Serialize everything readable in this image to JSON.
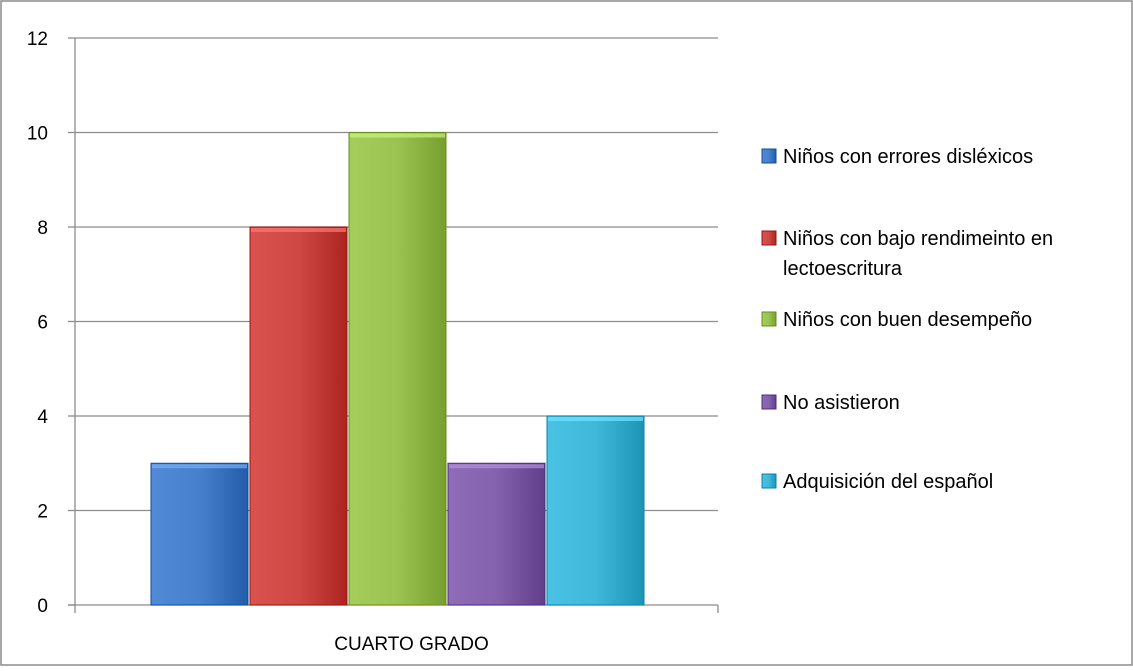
{
  "chart_data": {
    "type": "bar",
    "categories": [
      "CUARTO GRADO"
    ],
    "series": [
      {
        "name": "Niños con errores disléxicos",
        "values": [
          3
        ],
        "color": "#3f78c4"
      },
      {
        "name": "Niños con bajo rendimeinto en lectoescritura",
        "values": [
          8
        ],
        "color": "#c7403c"
      },
      {
        "name": "Niños con buen desempeño",
        "values": [
          10
        ],
        "color": "#93bb4a"
      },
      {
        "name": "No asistieron",
        "values": [
          3
        ],
        "color": "#7d5aa5"
      },
      {
        "name": "Adquisición del español",
        "values": [
          4
        ],
        "color": "#38b0d2"
      }
    ],
    "legend_lines": [
      [
        "Niños con errores disléxicos"
      ],
      [
        "Niños con bajo rendimeinto en",
        "lectoescritura"
      ],
      [
        "Niños con buen desempeño"
      ],
      [
        "No asistieron"
      ],
      [
        "Adquisición del español"
      ]
    ],
    "yticks": [
      0,
      2,
      4,
      6,
      8,
      10,
      12
    ],
    "ylim": [
      0,
      12
    ],
    "grid": true,
    "legend_position": "right",
    "title": "",
    "xlabel": "",
    "ylabel": ""
  }
}
